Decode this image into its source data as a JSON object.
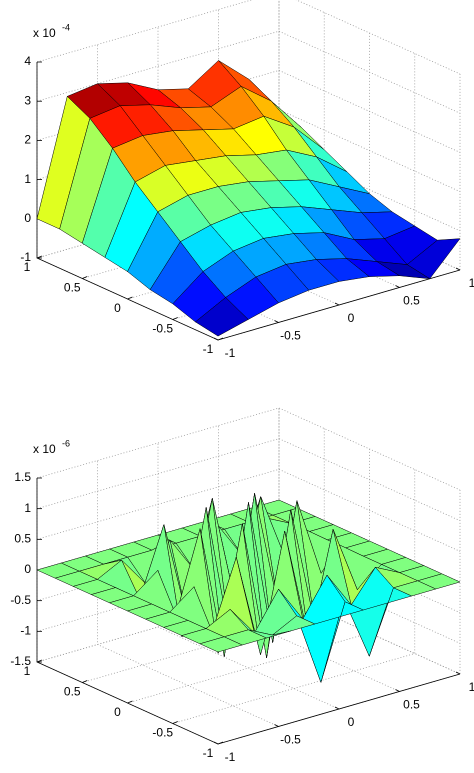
{
  "chart_data": [
    {
      "type": "surface",
      "colormap": "jet",
      "grid": true,
      "multiplier": {
        "base": "x 10",
        "exponent": "-4"
      },
      "xlim": [
        -1,
        1
      ],
      "ylim": [
        -1,
        1
      ],
      "zlim": [
        -1,
        4
      ],
      "xticks": [
        -1,
        -0.5,
        0,
        0.5,
        1
      ],
      "yticks": [
        -1,
        -0.5,
        0,
        0.5,
        1
      ],
      "zticks": [
        -1,
        0,
        1,
        2,
        3,
        4
      ],
      "x": [
        -1,
        -0.75,
        -0.5,
        -0.25,
        0,
        0.25,
        0.5,
        0.75,
        1
      ],
      "y": [
        -1,
        -0.75,
        -0.5,
        -0.25,
        0,
        0.25,
        0.5,
        0.75,
        1
      ],
      "z": [
        [
          -0.9,
          -0.7,
          -0.5,
          -0.4,
          -0.4,
          -0.5,
          -0.7,
          -1.0,
          -0.2
        ],
        [
          -0.8,
          -0.4,
          -0.1,
          0.0,
          -0.1,
          -0.3,
          -0.6,
          -0.9,
          -0.5
        ],
        [
          -0.6,
          0.0,
          0.3,
          0.4,
          0.3,
          0.1,
          -0.3,
          -0.5,
          -0.4
        ],
        [
          -0.5,
          0.5,
          0.7,
          0.8,
          0.7,
          0.5,
          0.2,
          -0.1,
          -0.3
        ],
        [
          -0.3,
          1.0,
          1.2,
          1.2,
          1.1,
          0.9,
          0.7,
          0.3,
          -0.1
        ],
        [
          -0.2,
          1.5,
          1.7,
          1.6,
          1.5,
          1.3,
          1.2,
          0.8,
          0.2
        ],
        [
          -0.1,
          2.1,
          2.2,
          2.1,
          1.9,
          1.7,
          1.8,
          1.3,
          0.5
        ],
        [
          0,
          2.6,
          2.7,
          2.5,
          2.2,
          2.0,
          2.3,
          1.7,
          0.8
        ],
        [
          0,
          2.9,
          3.0,
          2.8,
          2.4,
          2.2,
          2.7,
          2.0,
          1.0
        ]
      ]
    },
    {
      "type": "surface",
      "colormap": "jet",
      "grid": true,
      "multiplier": {
        "base": "x 10",
        "exponent": "-6"
      },
      "xlim": [
        -1,
        1
      ],
      "ylim": [
        -1,
        1
      ],
      "zlim": [
        -1.5,
        1.5
      ],
      "xticks": [
        -1,
        -0.5,
        0,
        0.5,
        1
      ],
      "yticks": [
        -1,
        -0.5,
        0,
        0.5,
        1
      ],
      "zticks": [
        -1.5,
        -1,
        -0.5,
        0,
        0.5,
        1,
        1.5
      ],
      "x": [
        -1,
        -0.8,
        -0.6,
        -0.4,
        -0.2,
        0,
        0.2,
        0.4,
        0.6,
        0.8,
        1
      ],
      "y": [
        -1,
        -0.8,
        -0.6,
        -0.4,
        -0.2,
        0,
        0.2,
        0.4,
        0.6,
        0.8,
        1
      ],
      "z": [
        [
          0,
          0,
          0,
          0,
          0,
          0,
          0,
          0,
          0,
          0,
          0
        ],
        [
          0,
          0,
          0,
          -0.2,
          0,
          -1.2,
          0,
          -1.0,
          0,
          0,
          0
        ],
        [
          0,
          0,
          0.2,
          -0.3,
          0.3,
          -0.3,
          0.3,
          -0.3,
          0.2,
          0,
          0
        ],
        [
          0,
          0,
          -0.3,
          0.8,
          -0.9,
          1.0,
          -0.9,
          0.8,
          -0.3,
          0,
          0
        ],
        [
          0,
          0,
          0.3,
          -0.9,
          1.1,
          -1.2,
          1.1,
          -0.9,
          0.3,
          0,
          0
        ],
        [
          0,
          0,
          -0.3,
          1.0,
          -1.2,
          1.2,
          -1.2,
          1.0,
          -0.3,
          0,
          0
        ],
        [
          0,
          0,
          0.3,
          -0.9,
          1.1,
          -1.2,
          1.1,
          -0.9,
          0.3,
          0,
          0
        ],
        [
          0,
          0,
          -0.3,
          0.8,
          -0.9,
          1.0,
          -0.9,
          0.8,
          -0.3,
          0,
          0
        ],
        [
          0,
          0,
          0.2,
          -0.3,
          0.3,
          -0.3,
          0.3,
          -0.3,
          0.2,
          0,
          0
        ],
        [
          0,
          0,
          0,
          0,
          0,
          0,
          0,
          0,
          0,
          0,
          0
        ],
        [
          0,
          0,
          0,
          0,
          0,
          0,
          0,
          0,
          0,
          0,
          0
        ]
      ]
    }
  ]
}
